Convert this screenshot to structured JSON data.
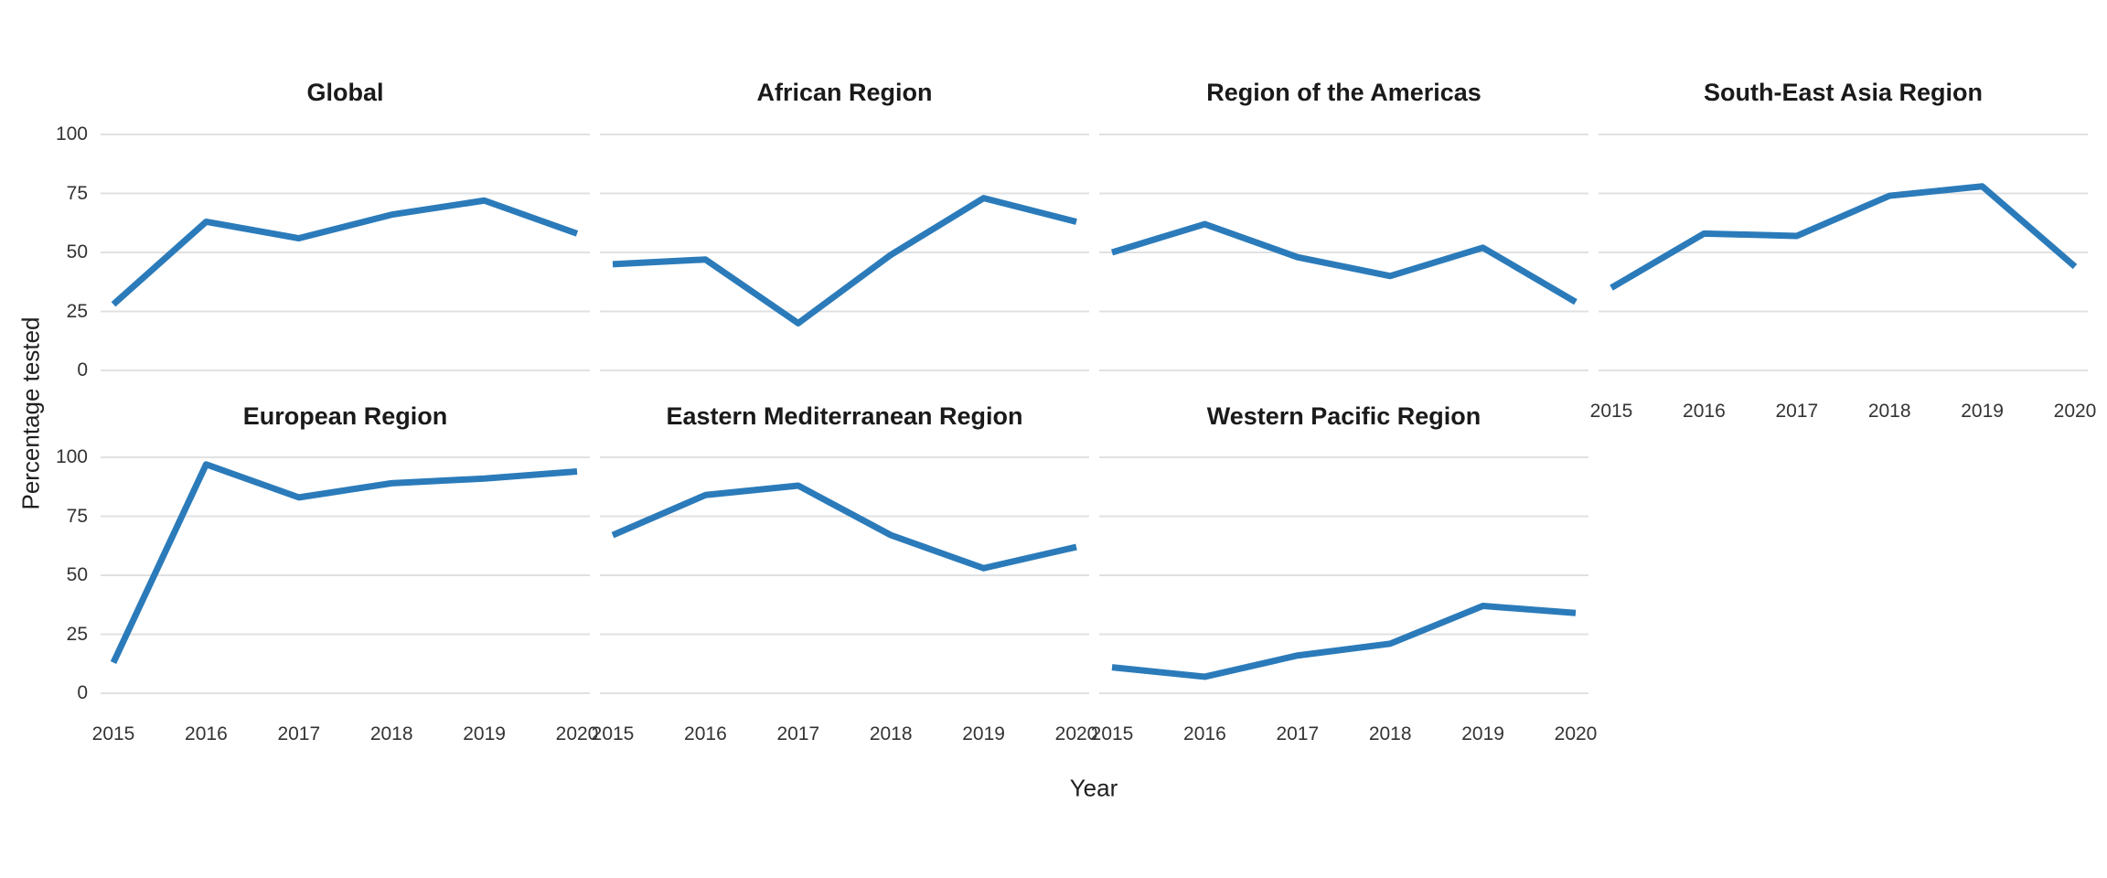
{
  "figure": {
    "y_axis_title": "Percentage tested",
    "x_axis_title": "Year",
    "line_color": "#2b7bba",
    "grid_color": "#e1e1e1",
    "background": "#ffffff"
  },
  "chart_data": {
    "type": "line",
    "title": "",
    "xlabel": "Year",
    "ylabel": "Percentage tested",
    "categories": [
      "2015",
      "2016",
      "2017",
      "2018",
      "2019",
      "2020"
    ],
    "yticks": [
      "100",
      "75",
      "50",
      "25",
      "0"
    ],
    "ylim": [
      0,
      100
    ],
    "grid": "horizontal",
    "legend": "none",
    "facets": [
      {
        "title": "Global",
        "values": [
          28,
          63,
          56,
          66,
          72,
          58
        ]
      },
      {
        "title": "African Region",
        "values": [
          45,
          47,
          20,
          49,
          73,
          63
        ]
      },
      {
        "title": "Region of the Americas",
        "values": [
          50,
          62,
          48,
          40,
          52,
          29
        ]
      },
      {
        "title": "South-East Asia Region",
        "values": [
          35,
          58,
          57,
          74,
          78,
          44
        ]
      },
      {
        "title": "European Region",
        "values": [
          13,
          97,
          83,
          89,
          91,
          94
        ]
      },
      {
        "title": "Eastern Mediterranean Region",
        "values": [
          67,
          84,
          88,
          67,
          53,
          62
        ]
      },
      {
        "title": "Western Pacific Region",
        "values": [
          11,
          7,
          16,
          21,
          37,
          34
        ]
      }
    ]
  }
}
